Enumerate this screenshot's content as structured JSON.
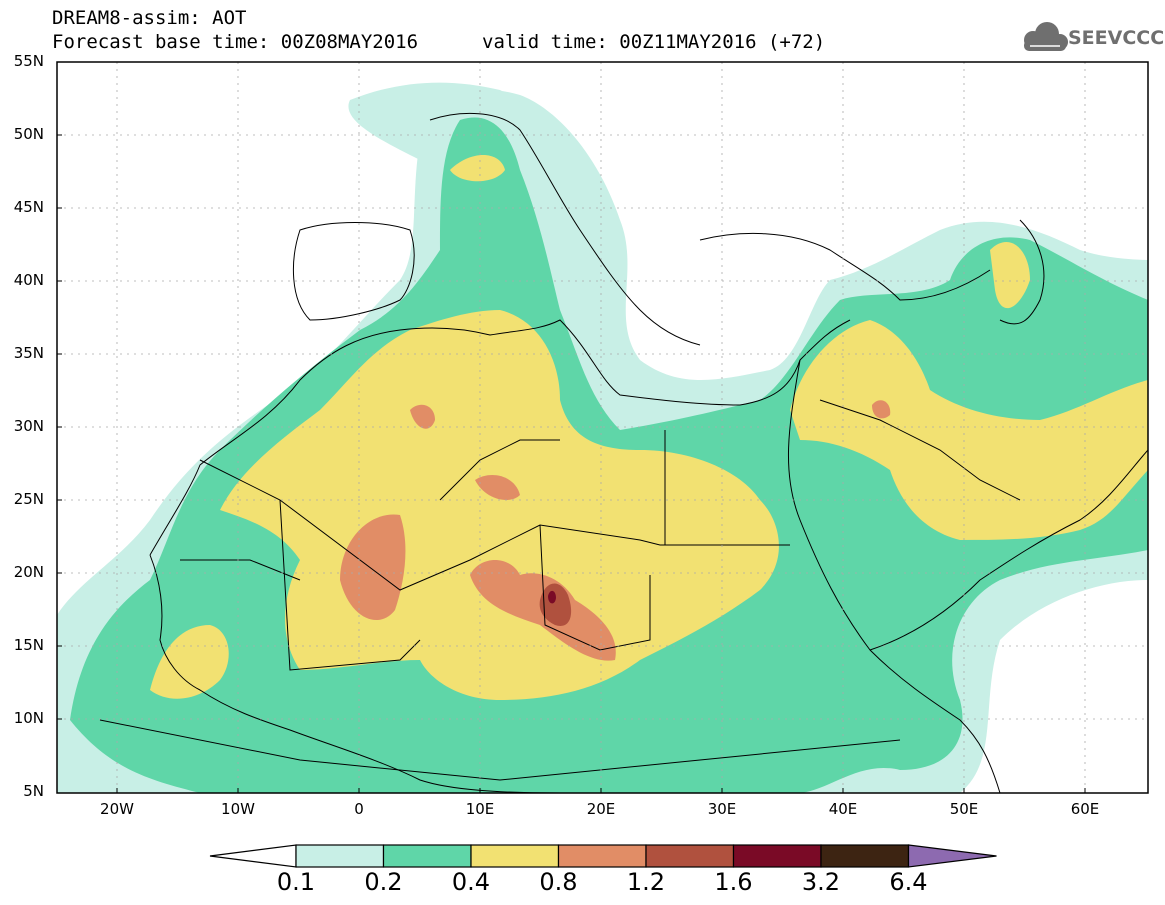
{
  "header": {
    "line1": "DREAM8-assim: AOT",
    "line2a": "Forecast base time: 00Z08MAY2016",
    "line2b": "valid time: 00Z11MAY2016 (+72)",
    "logo_text": "SEEVCCC",
    "logo_icon": "cloud-icon"
  },
  "map": {
    "lat_labels": [
      "55N",
      "50N",
      "45N",
      "40N",
      "35N",
      "30N",
      "25N",
      "20N",
      "15N",
      "10N",
      "5N"
    ],
    "lon_labels": [
      "20W",
      "10W",
      "0",
      "10E",
      "20E",
      "30E",
      "40E",
      "50E",
      "60E"
    ],
    "extent": {
      "lon_min": -25,
      "lon_max": 65,
      "lat_min": 5,
      "lat_max": 55
    }
  },
  "colorbar": {
    "levels": [
      "0.1",
      "0.2",
      "0.4",
      "0.8",
      "1.2",
      "1.6",
      "3.2",
      "6.4"
    ],
    "colors": [
      "#ffffff",
      "#c8efe6",
      "#5fd6a8",
      "#f2e172",
      "#e18d66",
      "#b0513e",
      "#7a0a26",
      "#3d2412",
      "#8d6ab0"
    ]
  }
}
